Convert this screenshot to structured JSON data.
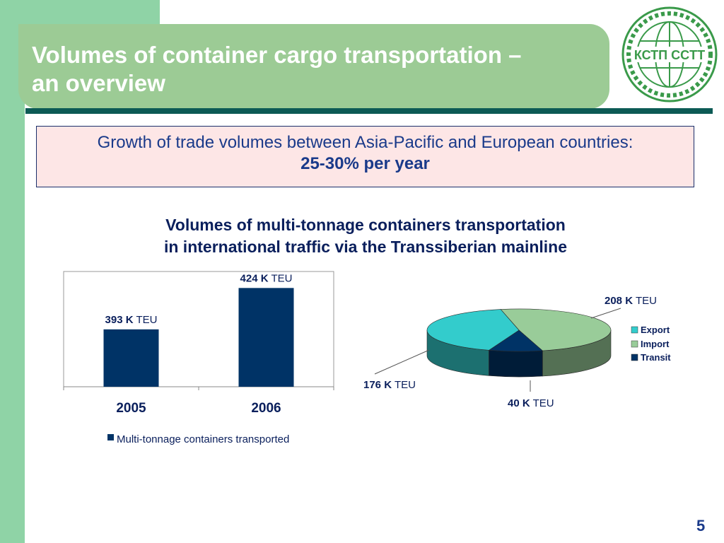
{
  "slide": {
    "title_line1": "Volumes of container cargo transportation –",
    "title_line2": "an overview",
    "page_number": "5",
    "logo_text": "КСТП CCTT"
  },
  "info": {
    "line1": "Growth of trade volumes between Asia-Pacific and European countries:",
    "line2": "25-30% per year"
  },
  "chart_heading": {
    "line1": "Volumes of multi-tonnage containers transportation",
    "line2": "in international traffic via the Transsiberian mainline"
  },
  "colors": {
    "navy": "#003366",
    "export": "#33cccc",
    "import": "#99cc99",
    "transit": "#003366"
  },
  "chart_data": [
    {
      "type": "bar",
      "categories": [
        "2005",
        "2006"
      ],
      "values": [
        393,
        424
      ],
      "value_labels": [
        {
          "bold": "393 K",
          "unit": "TEU"
        },
        {
          "bold": "424 K",
          "unit": "TEU"
        }
      ],
      "legend": "Multi-tonnage containers transported",
      "ylim": [
        350,
        430
      ],
      "grid": false
    },
    {
      "type": "pie",
      "slices": [
        {
          "label": "Export",
          "value": 176,
          "bold": "176 K",
          "unit": "TEU"
        },
        {
          "label": "Import",
          "value": 208,
          "bold": "208 K",
          "unit": "TEU"
        },
        {
          "label": "Transit",
          "value": 40,
          "bold": "40 K",
          "unit": "TEU"
        }
      ],
      "legend_position": "right"
    }
  ]
}
